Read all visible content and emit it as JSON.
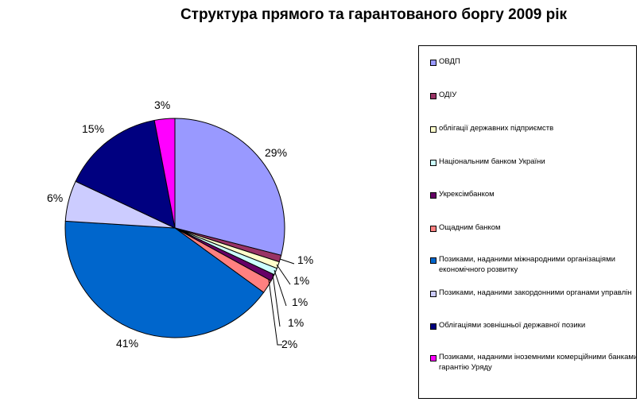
{
  "chart_data": {
    "type": "pie",
    "title": "Структура прямого та гарантованого боргу 2009 рік",
    "slices": [
      {
        "name": "ОВДП",
        "value": 29,
        "label": "29%",
        "color": "#9999ff"
      },
      {
        "name": "ОДІУ",
        "value": 1,
        "label": "1%",
        "color": "#993366"
      },
      {
        "name": "облігації державних підприємств",
        "value": 1,
        "label": "1%",
        "color": "#ffffcc"
      },
      {
        "name": "Національним банком України",
        "value": 1,
        "label": "1%",
        "color": "#ccffff"
      },
      {
        "name": "Укрексімбанком",
        "value": 1,
        "label": "1%",
        "color": "#660066"
      },
      {
        "name": "Ощадним банком",
        "value": 2,
        "label": "2%",
        "color": "#ff8080"
      },
      {
        "name": "Позиками, наданими міжнародними організаціями економічного розвитку",
        "value": 41,
        "label": "41%",
        "color": "#0066cc"
      },
      {
        "name": "Позиками, наданими закордонними органами управління",
        "value": 6,
        "label": "6%",
        "color": "#ccccff"
      },
      {
        "name": "Облігаціями зовнішньої державної позики",
        "value": 15,
        "label": "15%",
        "color": "#000080"
      },
      {
        "name": "Позиками, наданими іноземними комерційними банками під гарантію Уряду",
        "value": 3,
        "label": "3%",
        "color": "#ff00ff"
      }
    ],
    "legend": {
      "position": "right",
      "items": [
        {
          "lines": [
            "ОВДП"
          ]
        },
        {
          "lines": [
            "ОДІУ"
          ]
        },
        {
          "lines": [
            "облігації державних підприємств"
          ]
        },
        {
          "lines": [
            "Національним банком України"
          ]
        },
        {
          "lines": [
            "Укрексімбанком"
          ]
        },
        {
          "lines": [
            "Ощадним банком"
          ]
        },
        {
          "lines": [
            "Позиками, наданими міжнародними організаціями",
            "економічного розвитку"
          ]
        },
        {
          "lines": [
            "Позиками, наданими закордонними органами управлін"
          ]
        },
        {
          "lines": [
            "Облігаціями зовнішньої державної позики"
          ]
        },
        {
          "lines": [
            "Позиками, наданими іноземними комерційними банками",
            "гарантію Уряду"
          ]
        }
      ]
    }
  }
}
